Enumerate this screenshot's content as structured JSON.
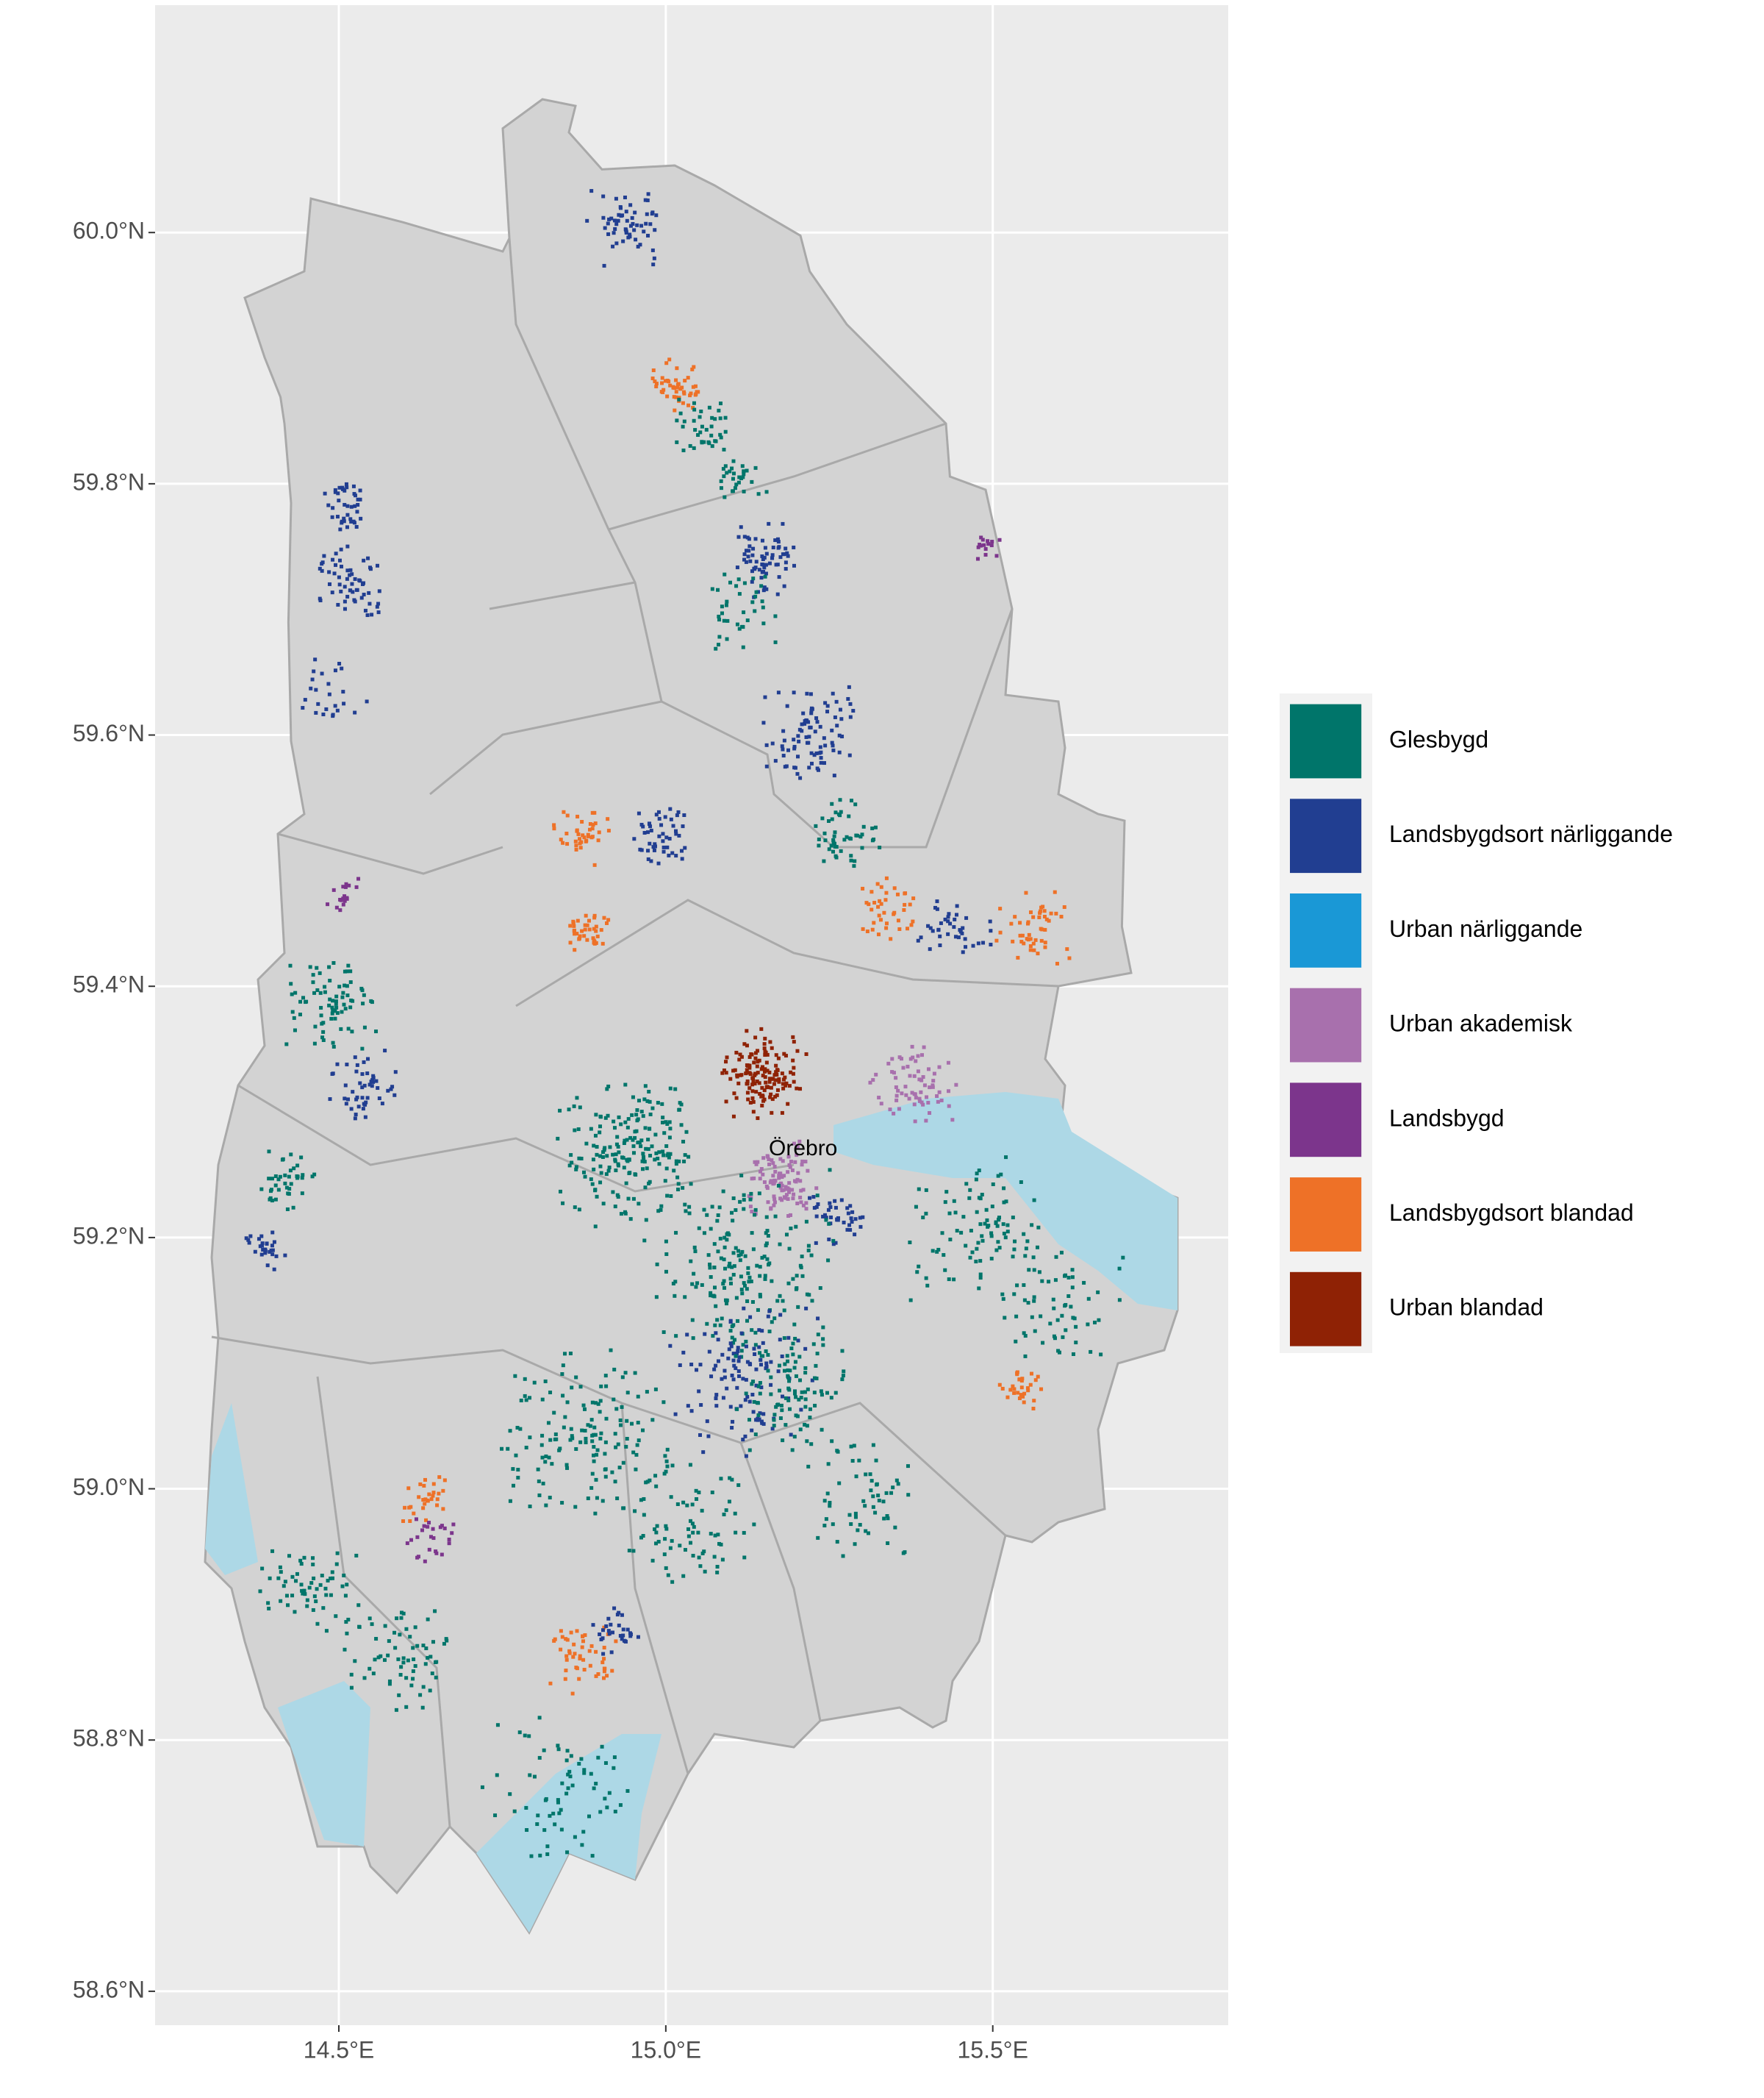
{
  "map": {
    "xlim": [
      14.219,
      15.86
    ],
    "ylim": [
      58.573,
      60.181
    ],
    "xticks": [
      {
        "value": 14.5,
        "label": "14.5°E"
      },
      {
        "value": 15.0,
        "label": "15.0°E"
      },
      {
        "value": 15.5,
        "label": "15.5°E"
      }
    ],
    "yticks": [
      {
        "value": 58.6,
        "label": "58.6°N"
      },
      {
        "value": 58.8,
        "label": "58.8°N"
      },
      {
        "value": 59.0,
        "label": "59.0°N"
      },
      {
        "value": 59.2,
        "label": "59.2°N"
      },
      {
        "value": 59.4,
        "label": "59.4°N"
      },
      {
        "value": 59.6,
        "label": "59.6°N"
      },
      {
        "value": 59.8,
        "label": "59.8°N"
      },
      {
        "value": 60.0,
        "label": "60.0°N"
      }
    ],
    "grid": true,
    "legend": [
      {
        "name": "Glesbygd",
        "color": "#00756a"
      },
      {
        "name": "Landsbygdsort närliggande",
        "color": "#213e91"
      },
      {
        "name": "Urban närliggande",
        "color": "#1a98d6"
      },
      {
        "name": "Urban akademisk",
        "color": "#a870ad"
      },
      {
        "name": "Landsbygd",
        "color": "#7c358c"
      },
      {
        "name": "Landsbygdsort blandad",
        "color": "#ee7127"
      },
      {
        "name": "Urban blandad",
        "color": "#8f2205"
      }
    ],
    "city": {
      "name": "Örebro",
      "lon": 15.21,
      "lat": 59.27
    }
  }
}
